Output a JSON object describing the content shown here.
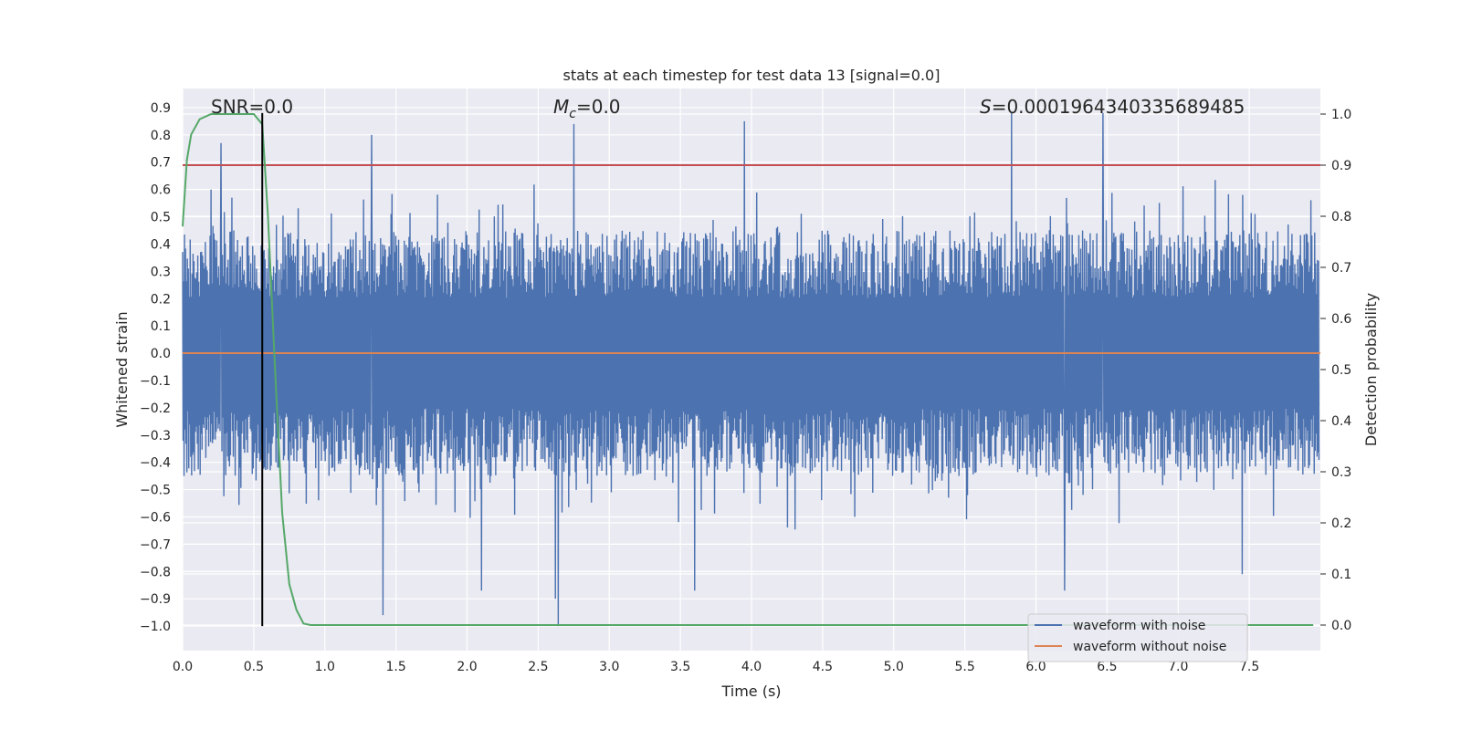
{
  "chart_data": {
    "type": "line",
    "title": "stats at each timestep for test data 13 [signal=0.0]",
    "xlabel": "Time (s)",
    "ylabel_left": "Whitened strain",
    "ylabel_right": "Detection probability",
    "xlim": [
      0.0,
      8.0
    ],
    "ylim_left": [
      -1.09,
      0.97
    ],
    "ylim_right": [
      -0.05,
      1.05
    ],
    "xticks": [
      "0.0",
      "0.5",
      "1.0",
      "1.5",
      "2.0",
      "2.5",
      "3.0",
      "3.5",
      "4.0",
      "4.5",
      "5.0",
      "5.5",
      "6.0",
      "6.5",
      "7.0",
      "7.5"
    ],
    "xtick_values": [
      0.0,
      0.5,
      1.0,
      1.5,
      2.0,
      2.5,
      3.0,
      3.5,
      4.0,
      4.5,
      5.0,
      5.5,
      6.0,
      6.5,
      7.0,
      7.5
    ],
    "yticks_left": [
      "0.9",
      "0.8",
      "0.7",
      "0.6",
      "0.5",
      "0.4",
      "0.3",
      "0.2",
      "0.1",
      "0.0",
      "−0.1",
      "−0.2",
      "−0.3",
      "−0.4",
      "−0.5",
      "−0.6",
      "−0.7",
      "−0.8",
      "−0.9",
      "−1.0"
    ],
    "ytick_values_left": [
      0.9,
      0.8,
      0.7,
      0.6,
      0.5,
      0.4,
      0.3,
      0.2,
      0.1,
      0.0,
      -0.1,
      -0.2,
      -0.3,
      -0.4,
      -0.5,
      -0.6,
      -0.7,
      -0.8,
      -0.9,
      -1.0
    ],
    "yticks_right": [
      "1.0",
      "0.9",
      "0.8",
      "0.7",
      "0.6",
      "0.5",
      "0.4",
      "0.3",
      "0.2",
      "0.1",
      "0.0"
    ],
    "ytick_values_right": [
      1.0,
      0.9,
      0.8,
      0.7,
      0.6,
      0.5,
      0.4,
      0.3,
      0.2,
      0.1,
      0.0
    ],
    "annotations": {
      "snr": "SNR=0.0",
      "mc_symbol": "M",
      "mc_sub": "c",
      "mc_rest": "=0.0",
      "s_symbol": "S",
      "s_rest": "=0.0001964340335689485"
    },
    "series": [
      {
        "name": "waveform with noise",
        "axis": "left",
        "color": "#4c72b0",
        "kind": "noise",
        "typical_range": [
          -0.45,
          0.45
        ],
        "extremes": [
          {
            "x": 0.27,
            "y": 0.77
          },
          {
            "x": 1.33,
            "y": 0.8
          },
          {
            "x": 1.41,
            "y": -0.96
          },
          {
            "x": 2.1,
            "y": -0.87
          },
          {
            "x": 2.62,
            "y": -0.9
          },
          {
            "x": 2.64,
            "y": -1.0
          },
          {
            "x": 2.75,
            "y": 0.84
          },
          {
            "x": 3.6,
            "y": -0.87
          },
          {
            "x": 3.95,
            "y": 0.85
          },
          {
            "x": 5.83,
            "y": 0.88
          },
          {
            "x": 6.2,
            "y": -0.87
          },
          {
            "x": 6.47,
            "y": 0.88
          },
          {
            "x": 7.45,
            "y": -0.81
          }
        ]
      },
      {
        "name": "waveform without noise",
        "axis": "left",
        "color": "#dd8452",
        "x": [
          0.0,
          8.0
        ],
        "y": [
          0.0,
          0.0
        ]
      },
      {
        "name": "detection probability",
        "axis": "right",
        "color": "#55a868",
        "x": [
          0.0,
          0.03,
          0.06,
          0.12,
          0.2,
          0.3,
          0.4,
          0.5,
          0.56,
          0.6,
          0.65,
          0.7,
          0.75,
          0.8,
          0.85,
          0.9,
          1.0,
          2.0,
          4.0,
          6.0,
          7.95
        ],
        "y": [
          0.78,
          0.91,
          0.96,
          0.99,
          1.0,
          1.0,
          1.0,
          1.0,
          0.98,
          0.8,
          0.5,
          0.22,
          0.08,
          0.03,
          0.003,
          0.0,
          0.0,
          0.0,
          0.0,
          0.0,
          0.0
        ]
      }
    ],
    "threshold": {
      "axis": "right",
      "value": 0.9,
      "color": "#c44e52"
    },
    "marker": {
      "x": 0.56,
      "y_from": -1.0,
      "y_to": 0.88,
      "color": "#000000"
    },
    "legend": {
      "position": "lower-right",
      "entries": [
        "waveform with noise",
        "waveform without noise"
      ]
    },
    "grid": true
  }
}
